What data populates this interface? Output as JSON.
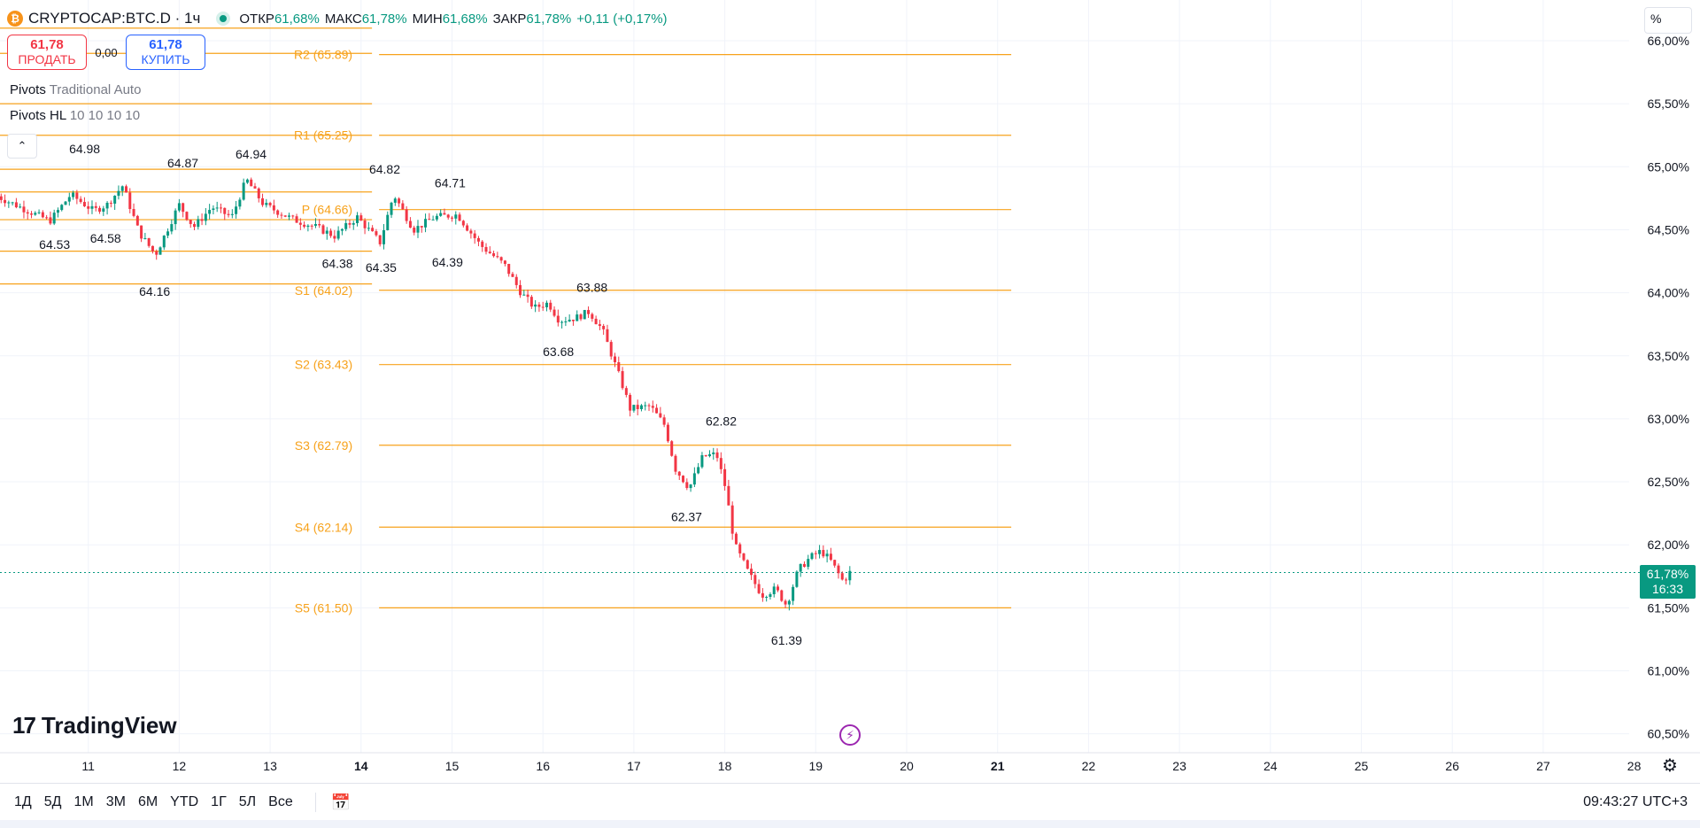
{
  "header": {
    "coin_icon": "bitcoin-icon",
    "coin_glyph": "₿",
    "symbol": "CRYPTOCAP:BTC.D",
    "separator": "·",
    "interval": "1ч",
    "ohlc": [
      {
        "label": "ОТКР",
        "value": "61,68%"
      },
      {
        "label": "МАКС",
        "value": "61,78%"
      },
      {
        "label": "МИН",
        "value": "61,68%"
      },
      {
        "label": "ЗАКР",
        "value": "61,78%"
      }
    ],
    "change": "+0,11 (+0,17%)"
  },
  "trade": {
    "sell_price": "61,78",
    "sell_label": "ПРОДАТЬ",
    "spread": "0,00",
    "buy_price": "61,78",
    "buy_label": "КУПИТЬ"
  },
  "indicators": [
    {
      "name": "Pivots",
      "params": "Traditional Auto"
    },
    {
      "name": "Pivots HL",
      "params": "10 10 10 10"
    }
  ],
  "collapse_glyph": "⌃",
  "scale_mode": "%",
  "price_tag": {
    "value": "61,78%",
    "countdown": "16:33"
  },
  "brand": {
    "logo_mark": "17",
    "name": "TradingView"
  },
  "flash_glyph": "⚡",
  "gear_glyph": "⚙",
  "calendar_glyph": "📅",
  "bottom": {
    "ranges": [
      "1Д",
      "5Д",
      "1М",
      "3М",
      "6М",
      "YTD",
      "1Г",
      "5Л",
      "Все"
    ],
    "clock": "09:43:27 UTC+3"
  },
  "chart_data": {
    "type": "candlestick",
    "y_range": [
      60.3,
      66.2
    ],
    "y_ticks": [
      {
        "value": 66.0,
        "label": "66,00%"
      },
      {
        "value": 65.5,
        "label": "65,50%"
      },
      {
        "value": 65.0,
        "label": "65,00%"
      },
      {
        "value": 64.5,
        "label": "64,50%"
      },
      {
        "value": 64.0,
        "label": "64,00%"
      },
      {
        "value": 63.5,
        "label": "63,50%"
      },
      {
        "value": 63.0,
        "label": "63,00%"
      },
      {
        "value": 62.5,
        "label": "62,50%"
      },
      {
        "value": 62.0,
        "label": "62,00%"
      },
      {
        "value": 61.5,
        "label": "61,50%"
      },
      {
        "value": 61.0,
        "label": "61,00%"
      },
      {
        "value": 60.5,
        "label": "60,50%"
      }
    ],
    "x_range": [
      10.0,
      28.0
    ],
    "x_ticks": [
      {
        "value": 11,
        "label": "11",
        "bold": false
      },
      {
        "value": 12,
        "label": "12",
        "bold": false
      },
      {
        "value": 13,
        "label": "13",
        "bold": false
      },
      {
        "value": 14,
        "label": "14",
        "bold": true
      },
      {
        "value": 15,
        "label": "15",
        "bold": false
      },
      {
        "value": 16,
        "label": "16",
        "bold": false
      },
      {
        "value": 17,
        "label": "17",
        "bold": false
      },
      {
        "value": 18,
        "label": "18",
        "bold": false
      },
      {
        "value": 19,
        "label": "19",
        "bold": false
      },
      {
        "value": 20,
        "label": "20",
        "bold": false
      },
      {
        "value": 21,
        "label": "21",
        "bold": true
      },
      {
        "value": 22,
        "label": "22",
        "bold": false
      },
      {
        "value": 23,
        "label": "23",
        "bold": false
      },
      {
        "value": 24,
        "label": "24",
        "bold": false
      },
      {
        "value": 25,
        "label": "25",
        "bold": false
      },
      {
        "value": 26,
        "label": "26",
        "bold": false
      },
      {
        "value": 27,
        "label": "27",
        "bold": false
      },
      {
        "value": 28,
        "label": "28",
        "bold": false
      }
    ],
    "current_price": 61.78,
    "up_color": "#089981",
    "down_color": "#f23645",
    "pivot_color": "#f7a21b",
    "pivots_prev": {
      "x_end": 14.12,
      "levels": [
        66.1,
        65.9,
        65.5,
        65.25,
        64.98,
        64.8,
        64.58,
        64.33,
        64.07
      ]
    },
    "pivots_current": {
      "x_start": 14.12,
      "x_end": 21.15,
      "levels": [
        {
          "name": "R2",
          "value": 65.89,
          "label": "R2 (65.89)"
        },
        {
          "name": "R1",
          "value": 65.25,
          "label": "R1 (65.25)"
        },
        {
          "name": "P",
          "value": 64.66,
          "label": "P (64.66)"
        },
        {
          "name": "S1",
          "value": 64.02,
          "label": "S1 (64.02)"
        },
        {
          "name": "S2",
          "value": 63.43,
          "label": "S2 (63.43)"
        },
        {
          "name": "S3",
          "value": 62.79,
          "label": "S3 (62.79)"
        },
        {
          "name": "S4",
          "value": 62.14,
          "label": "S4 (62.14)"
        },
        {
          "name": "S5",
          "value": 61.5,
          "label": "S5 (61.50)"
        }
      ]
    },
    "hl_labels": [
      {
        "x": 10.96,
        "y": 64.98,
        "label": "64.98",
        "pos": "above"
      },
      {
        "x": 10.63,
        "y": 64.53,
        "label": "64.53",
        "pos": "below"
      },
      {
        "x": 11.19,
        "y": 64.58,
        "label": "64.58",
        "pos": "below"
      },
      {
        "x": 12.04,
        "y": 64.87,
        "label": "64.87",
        "pos": "above"
      },
      {
        "x": 11.73,
        "y": 64.16,
        "label": "64.16",
        "pos": "below"
      },
      {
        "x": 12.79,
        "y": 64.94,
        "label": "64.94",
        "pos": "above"
      },
      {
        "x": 13.74,
        "y": 64.38,
        "label": "64.38",
        "pos": "below"
      },
      {
        "x": 14.26,
        "y": 64.82,
        "label": "64.82",
        "pos": "above"
      },
      {
        "x": 14.22,
        "y": 64.35,
        "label": "64.35",
        "pos": "below"
      },
      {
        "x": 14.98,
        "y": 64.71,
        "label": "64.71",
        "pos": "above"
      },
      {
        "x": 14.95,
        "y": 64.39,
        "label": "64.39",
        "pos": "below"
      },
      {
        "x": 16.54,
        "y": 63.88,
        "label": "63.88",
        "pos": "above"
      },
      {
        "x": 16.17,
        "y": 63.68,
        "label": "63.68",
        "pos": "below"
      },
      {
        "x": 17.96,
        "y": 62.82,
        "label": "62.82",
        "pos": "above"
      },
      {
        "x": 17.58,
        "y": 62.37,
        "label": "62.37",
        "pos": "below"
      },
      {
        "x": 18.68,
        "y": 61.39,
        "label": "61.39",
        "pos": "below"
      }
    ],
    "path": [
      [
        10.0,
        64.78
      ],
      [
        10.35,
        64.66
      ],
      [
        10.62,
        64.57
      ],
      [
        10.85,
        64.78
      ],
      [
        11.1,
        64.65
      ],
      [
        11.25,
        64.7
      ],
      [
        11.42,
        64.85
      ],
      [
        11.6,
        64.48
      ],
      [
        11.78,
        64.3
      ],
      [
        12.04,
        64.7
      ],
      [
        12.2,
        64.52
      ],
      [
        12.4,
        64.68
      ],
      [
        12.62,
        64.6
      ],
      [
        12.78,
        64.9
      ],
      [
        12.97,
        64.7
      ],
      [
        13.3,
        64.58
      ],
      [
        13.55,
        64.52
      ],
      [
        13.75,
        64.45
      ],
      [
        14.0,
        64.6
      ],
      [
        14.25,
        64.4
      ],
      [
        14.4,
        64.78
      ],
      [
        14.62,
        64.5
      ],
      [
        14.85,
        64.6
      ],
      [
        15.1,
        64.62
      ],
      [
        15.35,
        64.38
      ],
      [
        15.62,
        64.22
      ],
      [
        15.8,
        64.0
      ],
      [
        15.95,
        63.88
      ],
      [
        16.1,
        63.92
      ],
      [
        16.22,
        63.78
      ],
      [
        16.4,
        63.8
      ],
      [
        16.55,
        63.85
      ],
      [
        16.7,
        63.7
      ],
      [
        16.9,
        63.3
      ],
      [
        17.0,
        63.08
      ],
      [
        17.22,
        63.1
      ],
      [
        17.38,
        62.95
      ],
      [
        17.5,
        62.6
      ],
      [
        17.65,
        62.45
      ],
      [
        17.8,
        62.7
      ],
      [
        17.95,
        62.72
      ],
      [
        18.05,
        62.45
      ],
      [
        18.15,
        62.0
      ],
      [
        18.3,
        61.78
      ],
      [
        18.45,
        61.6
      ],
      [
        18.6,
        61.65
      ],
      [
        18.72,
        61.52
      ],
      [
        18.85,
        61.8
      ],
      [
        18.98,
        61.9
      ],
      [
        19.1,
        61.95
      ],
      [
        19.2,
        61.88
      ],
      [
        19.35,
        61.7
      ],
      [
        19.4,
        61.78
      ]
    ]
  }
}
